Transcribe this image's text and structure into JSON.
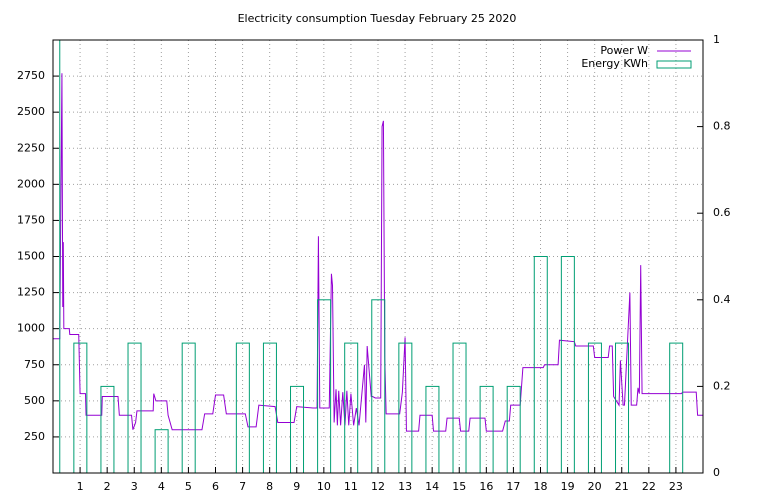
{
  "chart_data": {
    "type": "line",
    "title": "Electricity consumption Tuesday February 25 2020",
    "xlim": [
      0,
      24
    ],
    "xticks": [
      1,
      2,
      3,
      4,
      5,
      6,
      7,
      8,
      9,
      10,
      11,
      12,
      13,
      14,
      15,
      16,
      17,
      18,
      19,
      20,
      21,
      22,
      23
    ],
    "ylim": [
      0,
      3000
    ],
    "yticks": [
      250,
      500,
      750,
      1000,
      1250,
      1500,
      1750,
      2000,
      2250,
      2500,
      2750
    ],
    "y2lim": [
      0,
      1
    ],
    "y2ticks": [
      0,
      0.2,
      0.4,
      0.6,
      0.8,
      1
    ],
    "grid": true,
    "legend": "top right",
    "series": [
      {
        "name": "Power W",
        "color": "#9400d3",
        "type": "line",
        "x": [
          0,
          0.25,
          0.3,
          0.33,
          0.36,
          0.38,
          0.4,
          0.6,
          0.62,
          0.95,
          1.0,
          1.2,
          1.22,
          1.8,
          1.82,
          2.4,
          2.45,
          2.9,
          2.95,
          3.05,
          3.1,
          3.7,
          3.72,
          3.8,
          4.2,
          4.25,
          4.4,
          5.5,
          5.6,
          5.9,
          6.0,
          6.3,
          6.4,
          7.1,
          7.2,
          7.5,
          7.6,
          8.2,
          8.3,
          8.9,
          9.0,
          9.6,
          9.75,
          9.8,
          9.85,
          10.2,
          10.28,
          10.32,
          10.38,
          10.45,
          10.5,
          10.55,
          10.62,
          10.7,
          10.78,
          10.85,
          10.92,
          11.0,
          11.1,
          11.2,
          11.3,
          11.5,
          11.55,
          11.6,
          11.75,
          11.8,
          11.9,
          12.1,
          12.15,
          12.2,
          12.25,
          12.3,
          12.8,
          12.9,
          13.0,
          13.05,
          13.5,
          13.55,
          14.0,
          14.05,
          14.5,
          14.55,
          15.0,
          15.05,
          15.35,
          15.4,
          15.95,
          16.0,
          16.6,
          16.7,
          16.85,
          16.9,
          17.25,
          17.35,
          18.1,
          18.15,
          18.65,
          18.7,
          19.25,
          19.3,
          19.95,
          20.0,
          20.5,
          20.55,
          20.65,
          20.7,
          20.9,
          20.95,
          21.05,
          21.1,
          21.3,
          21.35,
          21.55,
          21.6,
          21.65,
          21.7,
          21.75,
          23.2,
          23.25,
          23.75,
          23.8,
          24
        ],
        "values": [
          930,
          930,
          2100,
          2770,
          1150,
          1600,
          1000,
          1000,
          960,
          960,
          550,
          550,
          400,
          400,
          530,
          530,
          400,
          400,
          300,
          350,
          430,
          430,
          550,
          500,
          500,
          400,
          300,
          300,
          410,
          410,
          540,
          540,
          410,
          410,
          320,
          320,
          470,
          460,
          350,
          350,
          460,
          450,
          450,
          1640,
          450,
          450,
          1380,
          1300,
          350,
          580,
          330,
          570,
          330,
          560,
          330,
          570,
          330,
          550,
          330,
          450,
          330,
          750,
          350,
          880,
          530,
          530,
          520,
          520,
          2400,
          2440,
          800,
          410,
          410,
          560,
          940,
          290,
          290,
          400,
          400,
          290,
          290,
          380,
          380,
          290,
          290,
          380,
          380,
          290,
          290,
          360,
          360,
          470,
          470,
          730,
          730,
          750,
          750,
          920,
          910,
          880,
          880,
          800,
          800,
          880,
          880,
          530,
          470,
          780,
          470,
          470,
          1250,
          470,
          470,
          590,
          550,
          1440,
          550,
          550,
          560,
          560,
          400,
          400
        ]
      },
      {
        "name": "Energy KWh",
        "color": "#009e73",
        "type": "boxes",
        "axis": "y2",
        "x": [
          0,
          1,
          2,
          3,
          4,
          5,
          6,
          7,
          8,
          9,
          10,
          11,
          12,
          13,
          14,
          15,
          16,
          17,
          18,
          19,
          20,
          21,
          22,
          23
        ],
        "values": [
          1,
          0.3,
          0.2,
          0.3,
          0.1,
          0.3,
          0,
          0.3,
          0.3,
          0.2,
          0.4,
          0.3,
          0.4,
          0.3,
          0.2,
          0.3,
          0.2,
          0.2,
          0.5,
          0.5,
          0.3,
          0.3,
          0,
          0.3
        ]
      }
    ]
  }
}
